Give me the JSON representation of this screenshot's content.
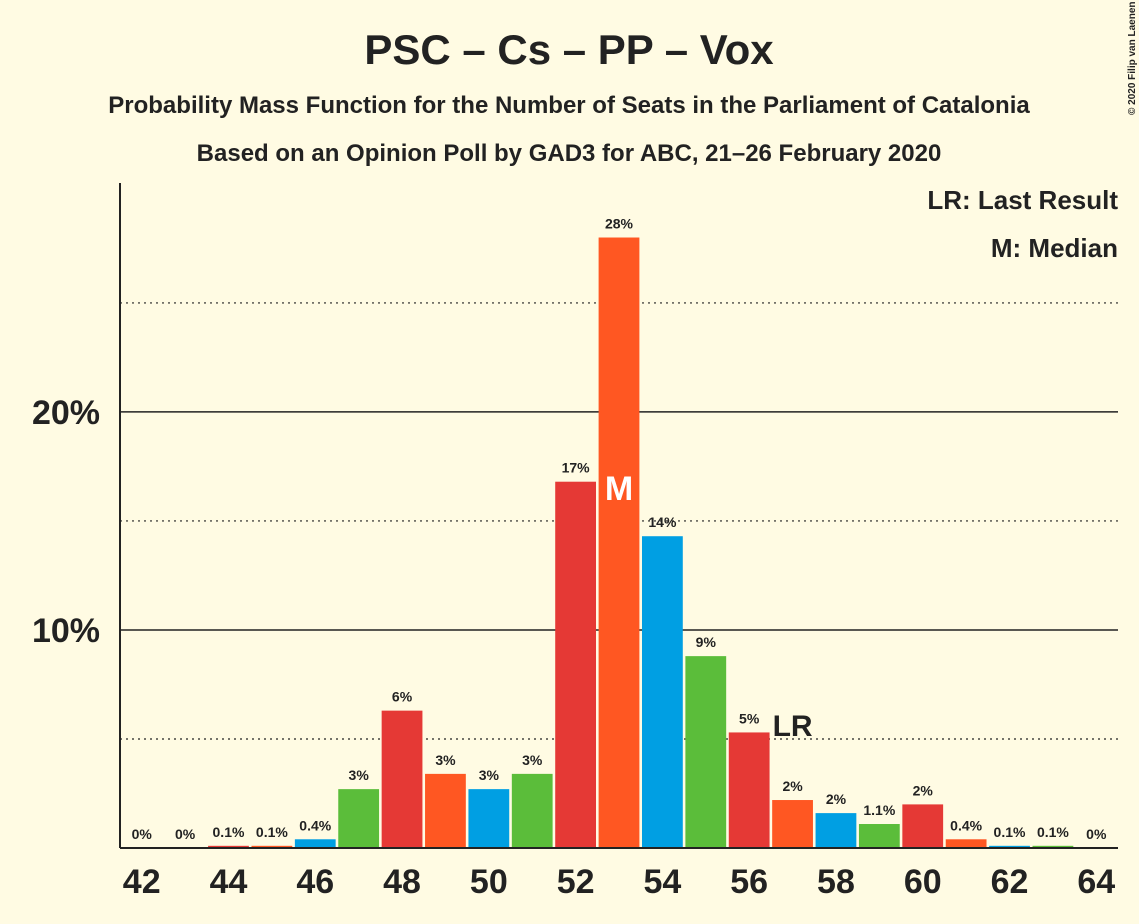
{
  "chart_data": {
    "type": "bar",
    "title": "PSC – Cs – PP – Vox",
    "subtitle": "Probability Mass Function for the Number of Seats in the Parliament of Catalonia",
    "subtitle2": "Based on an Opinion Poll by GAD3 for ABC, 21–26 February 2020",
    "x": [
      42,
      43,
      44,
      45,
      46,
      47,
      48,
      49,
      50,
      51,
      52,
      53,
      54,
      55,
      56,
      57,
      58,
      59,
      60,
      61,
      62,
      63,
      64
    ],
    "values": [
      0,
      0,
      0.1,
      0.1,
      0.4,
      2.7,
      6.3,
      3.4,
      2.7,
      3.4,
      16.8,
      28,
      14.3,
      8.8,
      5.3,
      2.2,
      1.6,
      1.1,
      2.0,
      0.4,
      0.1,
      0.1,
      0
    ],
    "value_labels": [
      "0%",
      "0%",
      "0.1%",
      "0.1%",
      "0.4%",
      "3%",
      "6%",
      "3%",
      "3%",
      "3%",
      "17%",
      "28%",
      "14%",
      "9%",
      "5%",
      "2%",
      "2%",
      "1.1%",
      "2%",
      "0.4%",
      "0.1%",
      "0.1%",
      "0%"
    ],
    "colors": [
      "#5bbd3a",
      "#5bbd3a",
      "#e53935",
      "#ff5722",
      "#009fe3",
      "#5bbd3a",
      "#e53935",
      "#ff5722",
      "#009fe3",
      "#5bbd3a",
      "#e53935",
      "#ff5722",
      "#009fe3",
      "#5bbd3a",
      "#e53935",
      "#ff5722",
      "#009fe3",
      "#5bbd3a",
      "#e53935",
      "#ff5722",
      "#009fe3",
      "#5bbd3a",
      "#e53935"
    ],
    "xlim": [
      41.5,
      64.5
    ],
    "xticks": [
      42,
      44,
      46,
      48,
      50,
      52,
      54,
      56,
      58,
      60,
      62,
      64
    ],
    "ylim": [
      0,
      30.5
    ],
    "yticks": [
      {
        "value": 10,
        "label": "10%"
      },
      {
        "value": 20,
        "label": "20%"
      }
    ],
    "minor_yticks": [
      5,
      15,
      25
    ],
    "median": {
      "label": "M",
      "x": 53
    },
    "last_result": {
      "label": "LR",
      "x": 57
    },
    "legend": [
      "LR: Last Result",
      "M: Median"
    ],
    "credit": "© 2020 Filip van Laenen"
  }
}
